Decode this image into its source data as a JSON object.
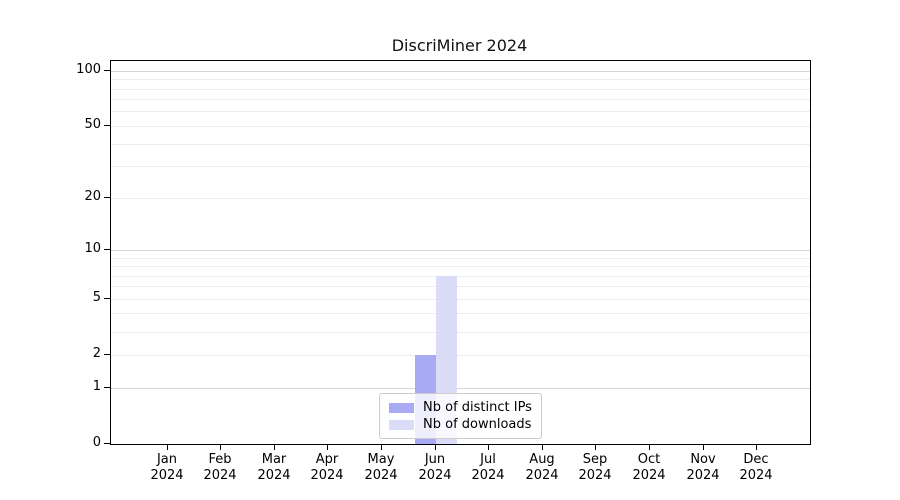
{
  "chart_data": {
    "type": "bar",
    "title": "DiscriMiner 2024",
    "months": [
      "Jan",
      "Feb",
      "Mar",
      "Apr",
      "May",
      "Jun",
      "Jul",
      "Aug",
      "Sep",
      "Oct",
      "Nov",
      "Dec"
    ],
    "year": "2024",
    "categories": [
      "Jan 2024",
      "Feb 2024",
      "Mar 2024",
      "Apr 2024",
      "May 2024",
      "Jun 2024",
      "Jul 2024",
      "Aug 2024",
      "Sep 2024",
      "Oct 2024",
      "Nov 2024",
      "Dec 2024"
    ],
    "series": [
      {
        "name": "Nb of distinct IPs",
        "color": "#a8abf4",
        "values": [
          0,
          0,
          0,
          0,
          0,
          2,
          0,
          0,
          0,
          0,
          0,
          0
        ]
      },
      {
        "name": "Nb of downloads",
        "color": "#dadcf8",
        "values": [
          0,
          0,
          0,
          0,
          0,
          7,
          0,
          0,
          0,
          0,
          0,
          0
        ]
      }
    ],
    "y_axis": {
      "scale": "log1p",
      "tick_values": [
        0,
        1,
        2,
        5,
        10,
        20,
        50,
        100
      ],
      "major_grid_values": [
        1,
        10,
        100
      ],
      "minor_grid_values": [
        2,
        3,
        4,
        5,
        6,
        7,
        8,
        9,
        20,
        30,
        40,
        50,
        60,
        70,
        80,
        90
      ],
      "ylim": [
        0,
        113
      ]
    },
    "legend": {
      "position": "bottom-center"
    },
    "colors": {
      "background": "#ffffff",
      "axis": "#000000",
      "major_grid": "#d6d6d6",
      "minor_grid": "#ededed"
    }
  }
}
